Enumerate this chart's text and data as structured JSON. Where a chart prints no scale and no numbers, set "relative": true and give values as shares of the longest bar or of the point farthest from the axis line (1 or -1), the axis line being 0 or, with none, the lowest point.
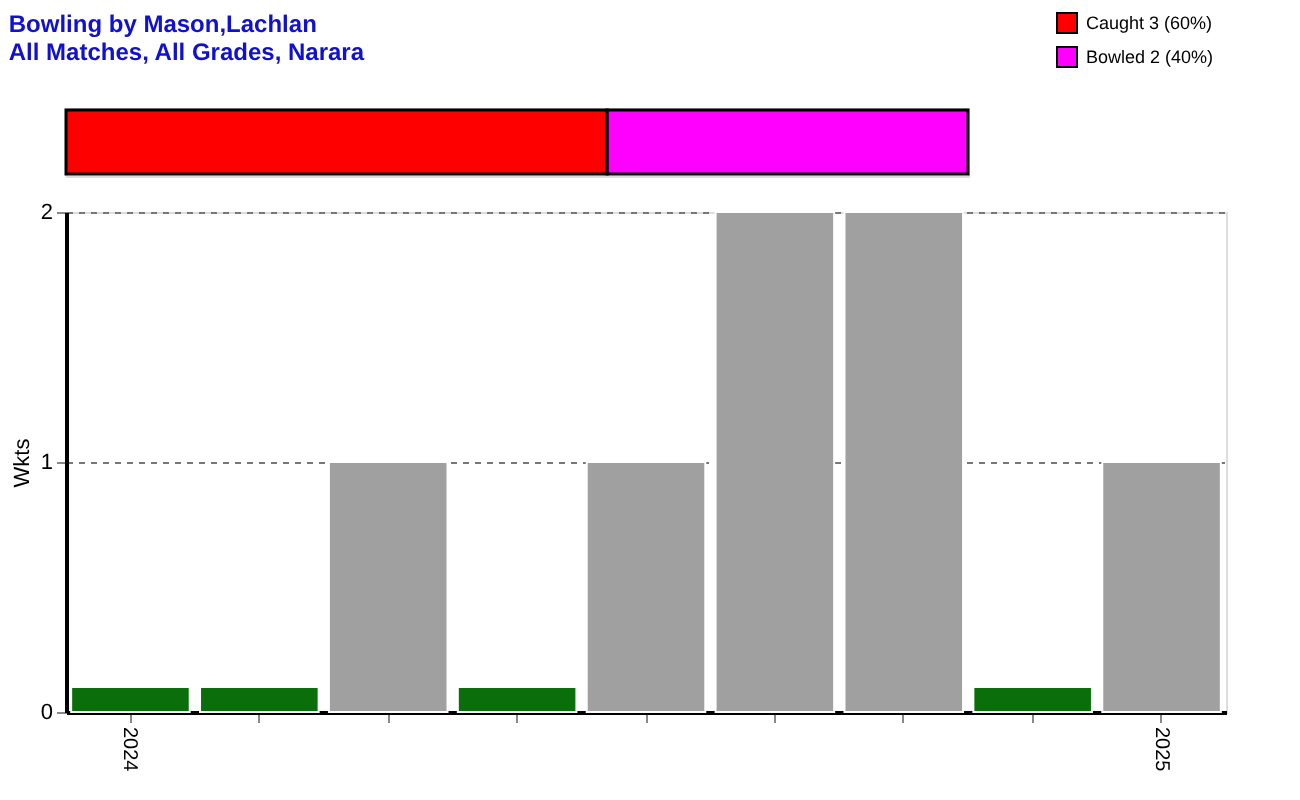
{
  "chart_data": [
    {
      "type": "bar",
      "title": "Bowling by Mason,Lachlan",
      "subtitle": "All Matches, All Grades, Narara",
      "orientation": "horizontal",
      "stacked": true,
      "relative": true,
      "legend": "top right",
      "categories": [
        null
      ],
      "series": [
        {
          "name": "Caught 3 (60%)",
          "color": "#ff0000",
          "values": [
            0.6
          ]
        },
        {
          "name": "Bowled 2 (40%)",
          "color": "#ff00ff",
          "values": [
            0.4
          ]
        }
      ]
    },
    {
      "type": "bar",
      "ylabel": "Wkts",
      "categories": [
        "2024",
        null,
        null,
        null,
        null,
        null,
        null,
        null,
        "2025"
      ],
      "values": [
        0.1,
        0.1,
        1,
        0.1,
        1,
        2,
        2,
        0.1,
        1
      ],
      "colors": [
        "#0a6e0a",
        "#0a6e0a",
        "#a0a0a0",
        "#0a6e0a",
        "#a0a0a0",
        "#a0a0a0",
        "#a0a0a0",
        "#0a6e0a",
        "#a0a0a0"
      ],
      "ylim": [
        0,
        2
      ],
      "yticks": [
        0,
        1,
        2
      ],
      "grid": "y"
    }
  ]
}
